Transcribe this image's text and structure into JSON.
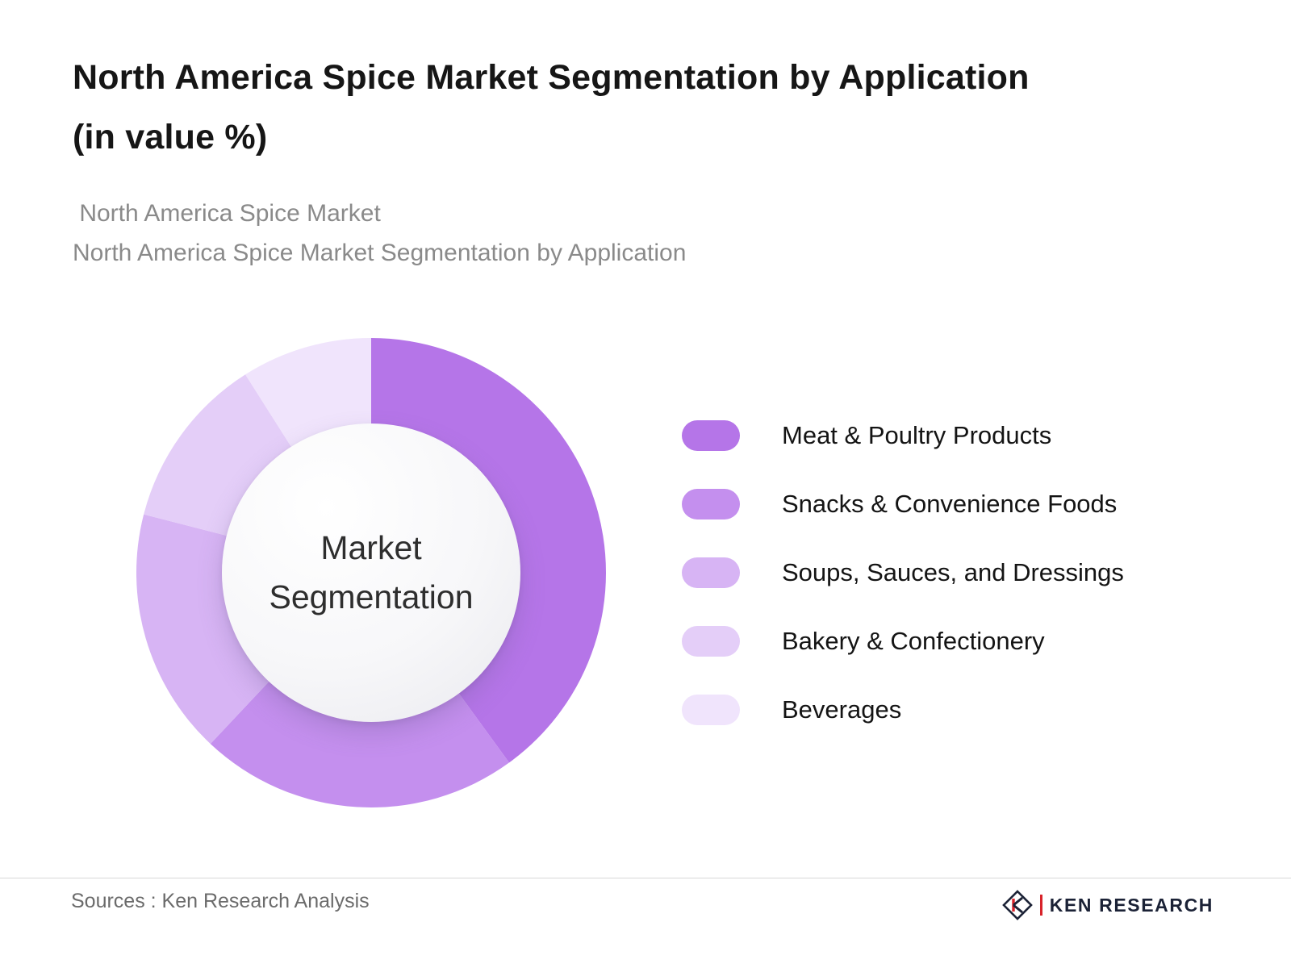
{
  "page": {
    "title_line1": "North America Spice Market Segmentation by Application",
    "title_line2": "(in value %)",
    "subtitle_line1": " North America Spice Market",
    "subtitle_line2": "North America Spice Market Segmentation by Application"
  },
  "chart_data": {
    "type": "pie",
    "donut": true,
    "title": "North America Spice Market Segmentation by Application (in value %)",
    "center_label_line1": "Market",
    "center_label_line2": "Segmentation",
    "start_angle_deg": 0,
    "direction": "clockwise",
    "legend_position": "right",
    "categories": [
      "Meat & Poultry Products",
      "Snacks & Convenience Foods",
      "Soups, Sauces, and Dressings",
      "Bakery & Confectionery",
      "Beverages"
    ],
    "values": [
      40,
      22,
      17,
      12,
      9
    ],
    "segments": [
      {
        "label": "Meat & Poultry Products",
        "value": 40,
        "color": "#b575e8"
      },
      {
        "label": "Snacks & Convenience Foods",
        "value": 22,
        "color": "#c48fee"
      },
      {
        "label": "Soups, Sauces, and Dressings",
        "value": 17,
        "color": "#d7b4f4"
      },
      {
        "label": "Bakery & Confectionery",
        "value": 12,
        "color": "#e4cef8"
      },
      {
        "label": "Beverages",
        "value": 9,
        "color": "#f0e4fc"
      }
    ]
  },
  "footer": {
    "sources": "Sources : Ken Research Analysis",
    "brand": "KEN RESEARCH"
  }
}
